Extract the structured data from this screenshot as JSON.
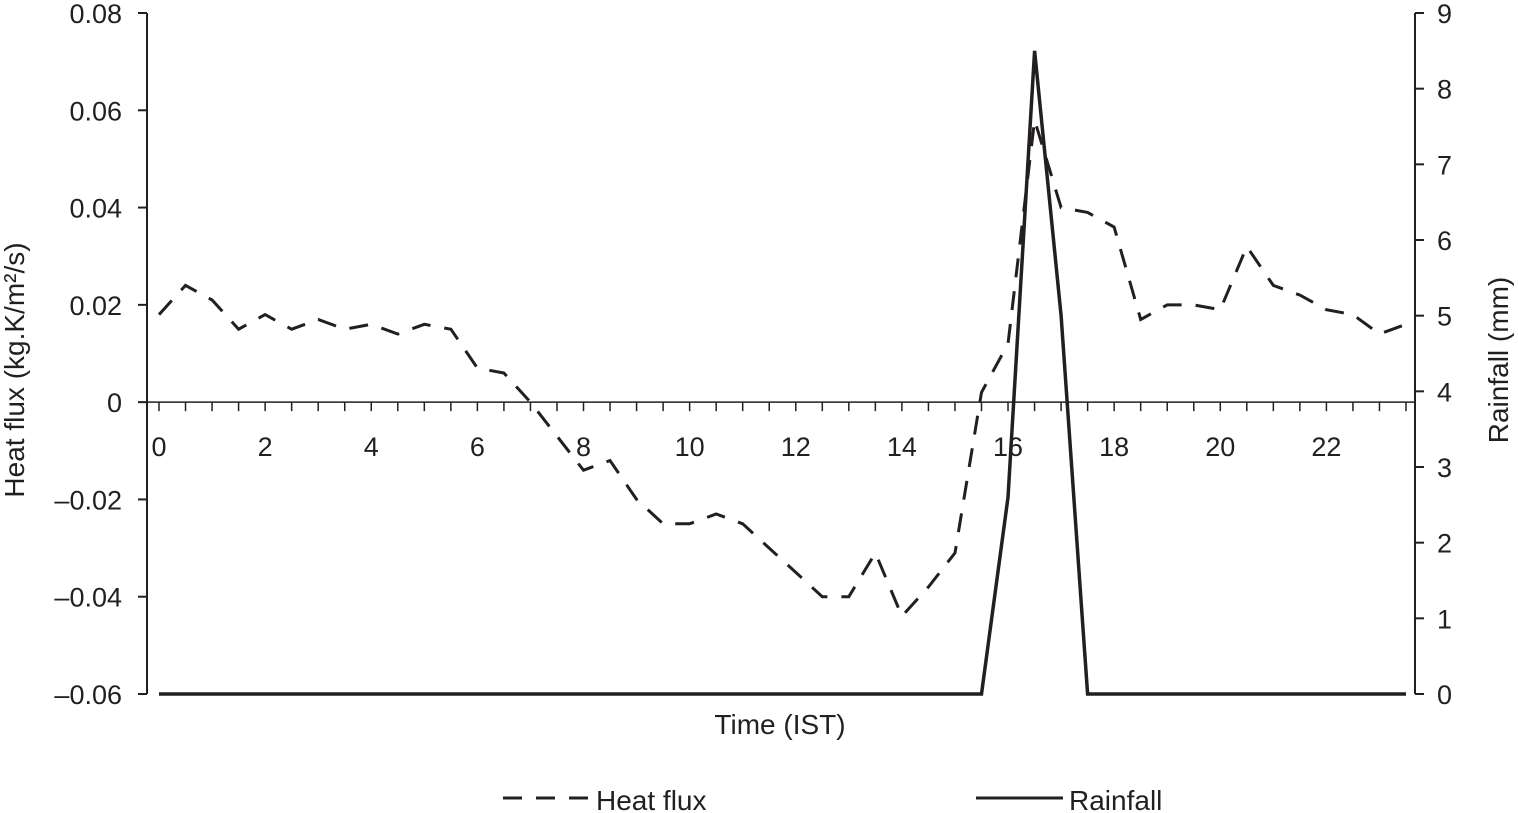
{
  "chart_data": {
    "type": "line",
    "title": "",
    "xlabel": "Time (IST)",
    "ylabel_left": "Heat flux (kg.K/m²/s)",
    "ylabel_right": "Rainfall (mm)",
    "xlim": [
      0,
      23.5
    ],
    "ylim_left": [
      -0.06,
      0.08
    ],
    "ylim_right": [
      0,
      9
    ],
    "x_ticks": [
      0,
      2,
      4,
      6,
      8,
      10,
      12,
      14,
      16,
      18,
      20,
      22
    ],
    "x_tick_labels": [
      "0",
      "2",
      "4",
      "6",
      "8",
      "10",
      "12",
      "14",
      "16",
      "18",
      "20",
      "22"
    ],
    "y_left_ticks": [
      0.08,
      0.06,
      0.04,
      0.02,
      0,
      -0.02,
      -0.04,
      -0.06
    ],
    "y_left_tick_labels": [
      "0.08",
      "0.06",
      "0.04",
      "0.02",
      "0",
      "–0.02",
      "–0.04",
      "–0.06"
    ],
    "y_right_ticks": [
      9,
      8,
      7,
      6,
      5,
      4,
      3,
      2,
      1,
      0
    ],
    "y_right_tick_labels": [
      "9",
      "8",
      "7",
      "6",
      "5",
      "4",
      "3",
      "2",
      "1",
      "0"
    ],
    "grid": false,
    "legend_position": "bottom",
    "series": [
      {
        "name": "Heat flux",
        "axis": "left",
        "style": "dashed",
        "color": "#231f20",
        "x": [
          0,
          0.5,
          1,
          1.5,
          2,
          2.5,
          3,
          3.5,
          4,
          4.5,
          5,
          5.5,
          6,
          6.5,
          7,
          7.5,
          8,
          8.5,
          9,
          9.5,
          10,
          10.5,
          11,
          11.5,
          12,
          12.5,
          13,
          13.5,
          14,
          14.5,
          15,
          15.5,
          16,
          16.5,
          17,
          17.5,
          18,
          18.5,
          19,
          19.5,
          20,
          20.5,
          21,
          21.5,
          22,
          22.5,
          23,
          23.5
        ],
        "values": [
          0.018,
          0.024,
          0.021,
          0.015,
          0.018,
          0.015,
          0.017,
          0.015,
          0.016,
          0.014,
          0.016,
          0.015,
          0.007,
          0.006,
          0.0,
          -0.007,
          -0.014,
          -0.012,
          -0.02,
          -0.025,
          -0.025,
          -0.023,
          -0.025,
          -0.03,
          -0.035,
          -0.04,
          -0.04,
          -0.031,
          -0.044,
          -0.038,
          -0.031,
          0.002,
          0.012,
          0.058,
          0.04,
          0.039,
          0.036,
          0.017,
          0.02,
          0.02,
          0.019,
          0.032,
          0.024,
          0.022,
          0.019,
          0.018,
          0.014,
          0.016
        ]
      },
      {
        "name": "Rainfall",
        "axis": "right",
        "style": "solid",
        "color": "#231f20",
        "x": [
          0,
          15.5,
          16,
          16.5,
          17,
          17.5,
          23.5
        ],
        "values": [
          0,
          0,
          2.6,
          8.5,
          5.0,
          0,
          0
        ]
      }
    ]
  },
  "legend": {
    "items": [
      {
        "label": "Heat flux",
        "style": "dashed"
      },
      {
        "label": "Rainfall",
        "style": "solid"
      }
    ]
  }
}
